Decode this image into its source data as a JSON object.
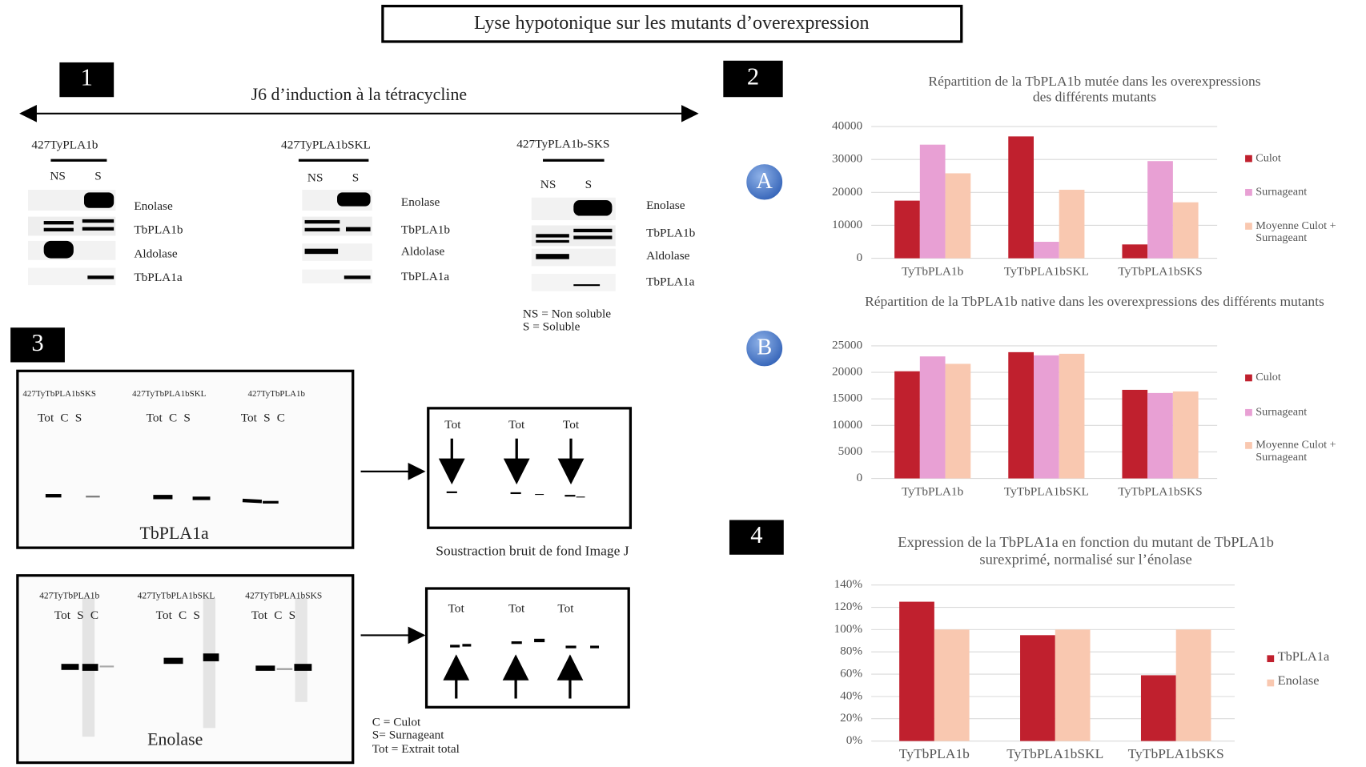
{
  "title": "Lyse hypotonique sur les mutants d’overexpression",
  "panel_labels": [
    "1",
    "2",
    "3",
    "4"
  ],
  "markers": [
    "A",
    "B"
  ],
  "panel1": {
    "heading": "J6 d’induction à la tétracycline",
    "blots": [
      {
        "strain": "427TyPLA1b",
        "lanes": [
          "NS",
          "S"
        ],
        "proteins": [
          "Enolase",
          "TbPLA1b",
          "Aldolase",
          "TbPLA1a"
        ]
      },
      {
        "strain": "427TyPLA1bSKL",
        "lanes": [
          "NS",
          "S"
        ],
        "proteins": [
          "Enolase",
          "TbPLA1b",
          "Aldolase",
          "TbPLA1a"
        ]
      },
      {
        "strain": "427TyPLA1b-SKS",
        "lanes": [
          "NS",
          "S"
        ],
        "proteins": [
          "Enolase",
          "TbPLA1b",
          "Aldolase",
          "TbPLA1a"
        ]
      }
    ],
    "legend": [
      "NS = Non soluble",
      "S = Soluble"
    ]
  },
  "panel3": {
    "blots": [
      {
        "label": "TbPLA1a",
        "strains": [
          "427TyTbPLA1bSKS",
          "427TyTbPLA1bSKL",
          "427TyTbPLA1b"
        ],
        "lanes": [
          "Tot C S",
          "Tot C S",
          "Tot S C"
        ],
        "processed": [
          "Tot",
          "Tot",
          "Tot"
        ]
      },
      {
        "label": "Enolase",
        "strains": [
          "427TyTbPLA1b",
          "427TyTbPLA1bSKL",
          "427TyTbPLA1bSKS"
        ],
        "lanes": [
          "Tot S C",
          "Tot C S",
          "Tot C S"
        ],
        "processed": [
          "Tot",
          "Tot",
          "Tot"
        ]
      }
    ],
    "caption": "Soustraction bruit de fond Image J",
    "legend": [
      "C = Culot",
      "S= Surnageant",
      "Tot = Extrait total"
    ]
  },
  "chart_data": [
    {
      "type": "bar",
      "title": "Répartition de la TbPLA1b mutée dans les overexpressions des différents mutants",
      "categories": [
        "TyTbPLA1b",
        "TyTbPLA1bSKL",
        "TyTbPLA1bSKS"
      ],
      "series": [
        {
          "name": "Culot",
          "color": "#c0202e",
          "values": [
            17500,
            37000,
            4200
          ]
        },
        {
          "name": "Surnageant",
          "color": "#e8a0d4",
          "values": [
            34500,
            5000,
            29500
          ]
        },
        {
          "name": "Moyenne Culot + Surnageant",
          "color": "#f9c8b0",
          "values": [
            25800,
            20800,
            17000
          ]
        }
      ],
      "ylim": [
        0,
        40000
      ],
      "yticks": [
        0,
        10000,
        20000,
        30000,
        40000
      ],
      "grid": true,
      "legend": "right"
    },
    {
      "type": "bar",
      "title": "Répartition de la TbPLA1b native dans les overexpressions des différents mutants",
      "categories": [
        "TyTbPLA1b",
        "TyTbPLA1bSKL",
        "TyTbPLA1bSKS"
      ],
      "series": [
        {
          "name": "Culot",
          "color": "#c0202e",
          "values": [
            20200,
            23800,
            16700
          ]
        },
        {
          "name": "Surnageant",
          "color": "#e8a0d4",
          "values": [
            23000,
            23200,
            16100
          ]
        },
        {
          "name": "Moyenne Culot + Surnageant",
          "color": "#f9c8b0",
          "values": [
            21600,
            23500,
            16400
          ]
        }
      ],
      "ylim": [
        0,
        25000
      ],
      "yticks": [
        0,
        5000,
        10000,
        15000,
        20000,
        25000
      ],
      "grid": true,
      "legend": "right"
    },
    {
      "type": "bar",
      "title": "Expression de la TbPLA1a en fonction du mutant de TbPLA1b surexprimé, normalisé sur l’énolase",
      "categories": [
        "TyTbPLA1b",
        "TyTbPLA1bSKL",
        "TyTbPLA1bSKS"
      ],
      "series": [
        {
          "name": "TbPLA1a",
          "color": "#c0202e",
          "values": [
            125,
            95,
            59
          ]
        },
        {
          "name": "Enolase",
          "color": "#f9c8b0",
          "values": [
            100,
            100,
            100
          ]
        }
      ],
      "ylim": [
        0,
        140
      ],
      "yticks": [
        {
          "value": 0,
          "label": "0%"
        },
        {
          "value": 20,
          "label": "20%"
        },
        {
          "value": 40,
          "label": "40%"
        },
        {
          "value": 60,
          "label": "60%"
        },
        {
          "value": 80,
          "label": "80%"
        },
        {
          "value": 100,
          "label": "100%"
        },
        {
          "value": 120,
          "label": "120%"
        },
        {
          "value": 140,
          "label": "140%"
        }
      ],
      "grid": true,
      "legend": "right"
    }
  ]
}
